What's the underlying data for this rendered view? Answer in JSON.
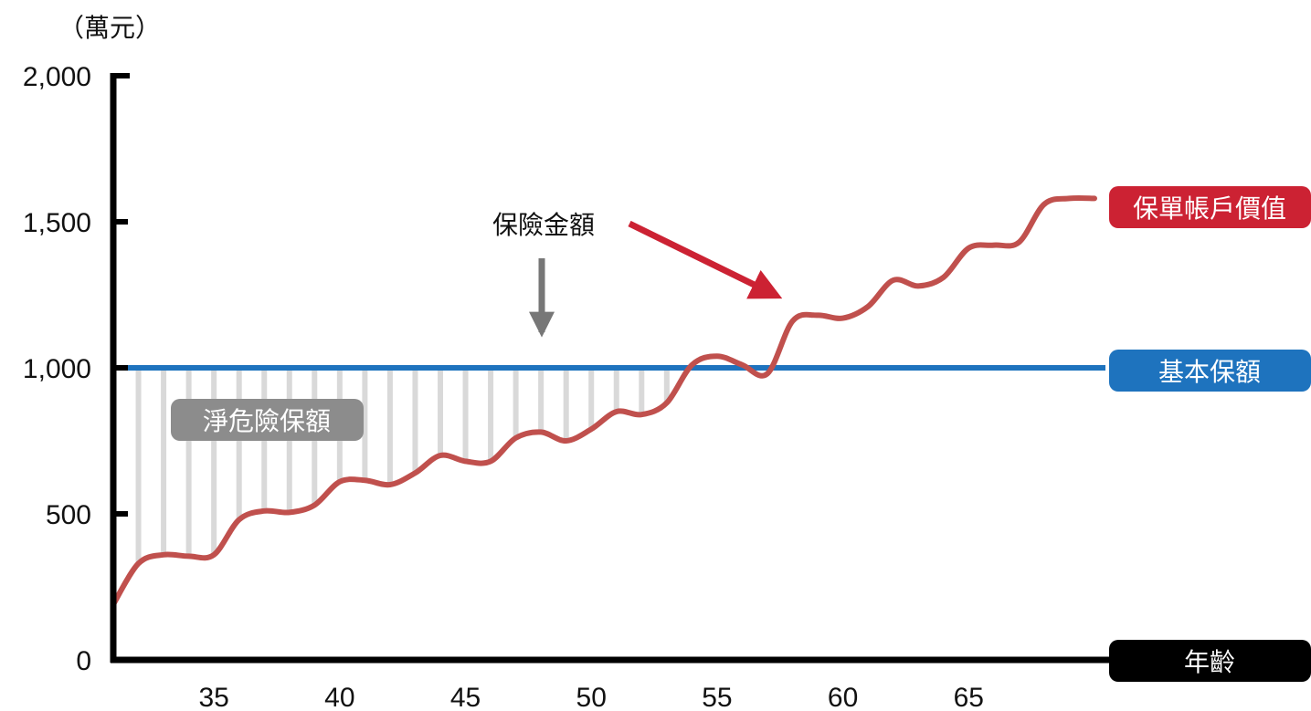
{
  "chart_data": {
    "type": "line",
    "y_unit_label": "（萬元）",
    "xlabel_badge": "年齡",
    "xlim": [
      31,
      70
    ],
    "ylim": [
      0,
      2000
    ],
    "x_ticks": [
      35,
      40,
      45,
      50,
      55,
      60,
      65
    ],
    "y_ticks": [
      {
        "value": 0,
        "label": "0"
      },
      {
        "value": 500,
        "label": "500"
      },
      {
        "value": 1000,
        "label": "1,000"
      },
      {
        "value": 1500,
        "label": "1,500"
      },
      {
        "value": 2000,
        "label": "2,000"
      }
    ],
    "grid": false,
    "colors": {
      "account_value": "#c0504d",
      "face_amount": "#1e73be",
      "net_risk_fill": "#d9d9d9",
      "net_risk_badge": "#8c8c8c",
      "age_badge": "#000000",
      "account_badge": "#cc2233",
      "arrow_red": "#cc2233",
      "arrow_gray": "#777777",
      "axis": "#000000"
    },
    "series": [
      {
        "name": "保單帳戶價值",
        "color": "#c0504d",
        "x": [
          31,
          32,
          33,
          34,
          35,
          36,
          37,
          38,
          39,
          40,
          41,
          42,
          43,
          44,
          45,
          46,
          47,
          48,
          49,
          50,
          51,
          52,
          53,
          54,
          55,
          56,
          57,
          58,
          59,
          60,
          61,
          62,
          63,
          64,
          65,
          66,
          67,
          68,
          69,
          70
        ],
        "y": [
          190,
          330,
          360,
          355,
          360,
          480,
          510,
          505,
          530,
          610,
          615,
          600,
          640,
          700,
          680,
          680,
          760,
          780,
          750,
          790,
          850,
          840,
          880,
          1010,
          1040,
          1010,
          980,
          1160,
          1180,
          1170,
          1210,
          1300,
          1280,
          1310,
          1410,
          1420,
          1430,
          1560,
          1580,
          1580
        ]
      },
      {
        "name": "基本保額",
        "color": "#1e73be",
        "x": [
          31,
          70
        ],
        "y": [
          1000,
          1000
        ]
      }
    ],
    "annotations": {
      "account_value_badge": "保單帳戶價值",
      "face_amount_badge": "基本保額",
      "net_risk_badge": "淨危險保額",
      "insurance_amount": "保險金額"
    }
  }
}
